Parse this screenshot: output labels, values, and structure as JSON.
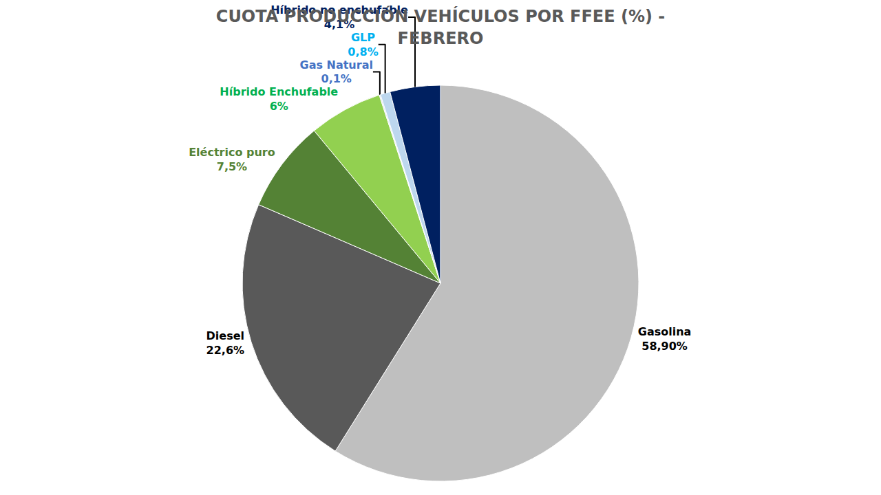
{
  "chart_data": {
    "type": "pie",
    "title": "CUOTA PRODUCCIÓN VEHÍCULOS POR FFEE (%) -\nFEBRERO",
    "categories": [
      "Gasolina",
      "Diesel",
      "Eléctrico puro",
      "Híbrido Enchufable",
      "Gas Natural",
      "GLP",
      "Híbrido no enchufable"
    ],
    "values": [
      58.9,
      22.6,
      7.5,
      6,
      0.1,
      0.8,
      4.1
    ],
    "value_labels": [
      "58,90%",
      "22,6%",
      "7,5%",
      "6%",
      "0,1%",
      "0,8%",
      "4,1%"
    ],
    "colors": [
      "#bfbfbf",
      "#595959",
      "#548235",
      "#92d050",
      "#dae3f3",
      "#bdd7ee",
      "#002060"
    ],
    "data_labels": true
  }
}
